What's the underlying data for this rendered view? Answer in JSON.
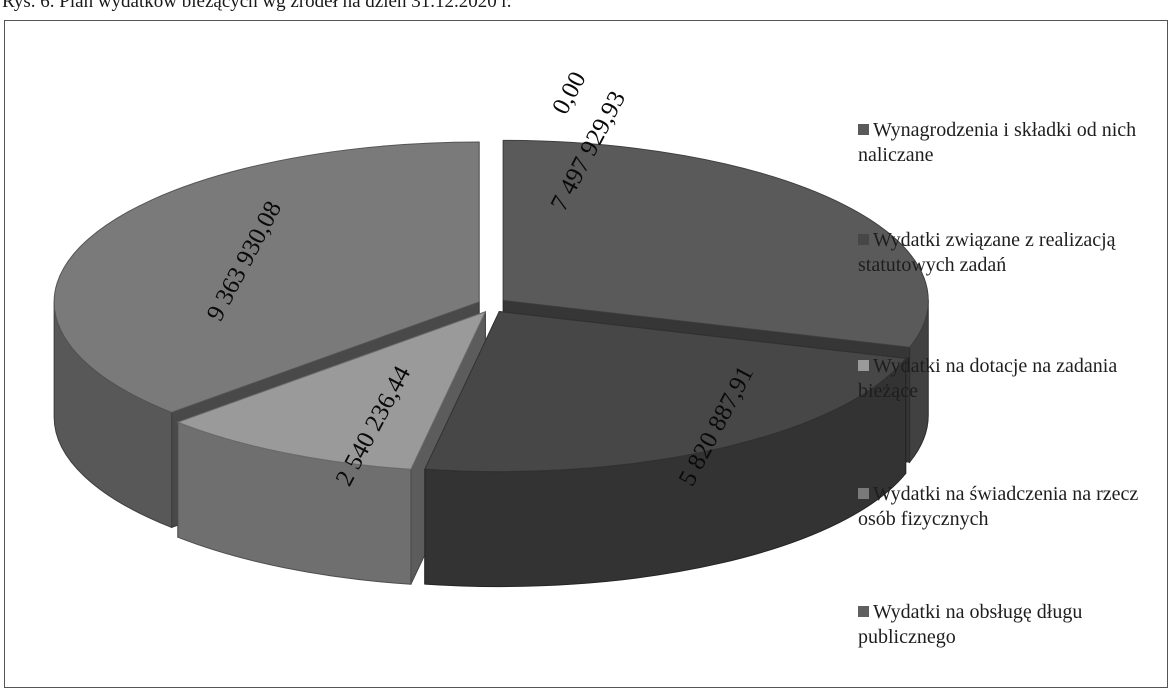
{
  "caption": "Rys. 6. Plan wydatków bieżących wg źródeł na dzień 31.12.2020 r.",
  "colors": {
    "wynagrodzenia": "#5a5a5a",
    "statutowe": "#474747",
    "dotacje": "#9a9a9a",
    "swiadczenia": "#7a7a7a",
    "dlug": "#606060"
  },
  "chart_data": {
    "type": "pie",
    "style": "3d-exploded",
    "legend_position": "right",
    "series": [
      {
        "name": "Wynagrodzenia i składki od nich naliczane",
        "label": "7 497 929,93",
        "value": 7497929.93
      },
      {
        "name": "Wydatki związane z realizacją statutowych zadań",
        "label": "5 820 887,91",
        "value": 5820887.91
      },
      {
        "name": "Wydatki na dotacje na zadania bieżące",
        "label": "2 540 236,44",
        "value": 2540236.44
      },
      {
        "name": "Wydatki na świadczenia na rzecz osób fizycznych",
        "label": "9 363 930,08",
        "value": 9363930.08
      },
      {
        "name": "Wydatki na obsługę długu publicznego",
        "label": "0,00",
        "value": 0.0
      }
    ]
  }
}
